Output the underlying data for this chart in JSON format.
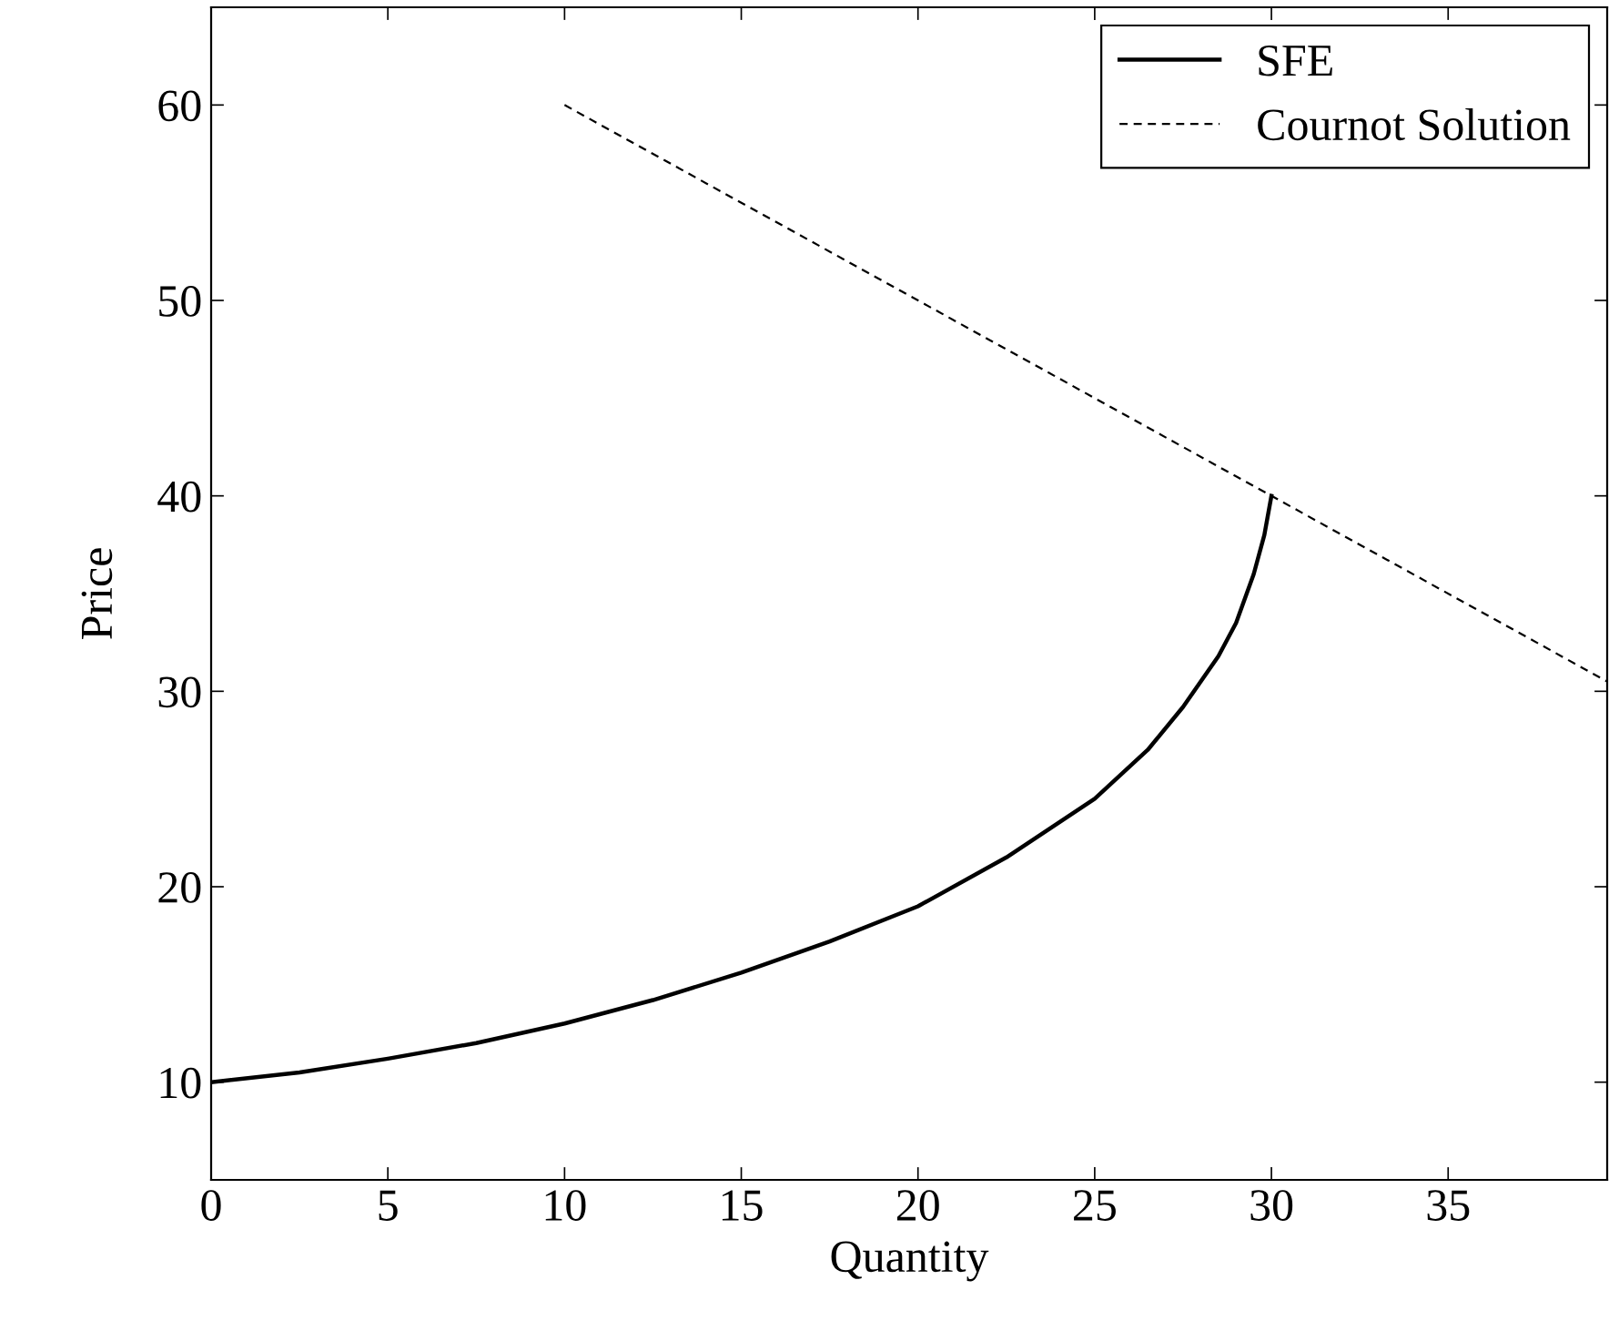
{
  "chart_data": {
    "type": "line",
    "xlabel": "Quantity",
    "ylabel": "Price",
    "xlim": [
      0,
      39.5
    ],
    "ylim": [
      5,
      65
    ],
    "xticks": [
      0,
      5,
      10,
      15,
      20,
      25,
      30,
      35
    ],
    "yticks": [
      10,
      20,
      30,
      40,
      50,
      60
    ],
    "grid": false,
    "legend": "top right",
    "marker": "none",
    "series": [
      {
        "name": "SFE",
        "color": "#000000",
        "line_style": "solid",
        "x": [
          0,
          2.5,
          5,
          7.5,
          10,
          12.5,
          15,
          17.5,
          20,
          22.5,
          25,
          26.5,
          27.5,
          28.5,
          29,
          29.5,
          29.8,
          30
        ],
        "values": [
          10,
          10.5,
          11.2,
          12,
          13,
          14.2,
          15.6,
          17.2,
          19,
          21.5,
          24.5,
          27,
          29.2,
          31.8,
          33.5,
          36,
          38,
          40
        ]
      },
      {
        "name": "Cournot Solution",
        "color": "#000000",
        "line_style": "dashed",
        "x": [
          10,
          39.5
        ],
        "values": [
          60,
          30.5
        ]
      }
    ]
  }
}
